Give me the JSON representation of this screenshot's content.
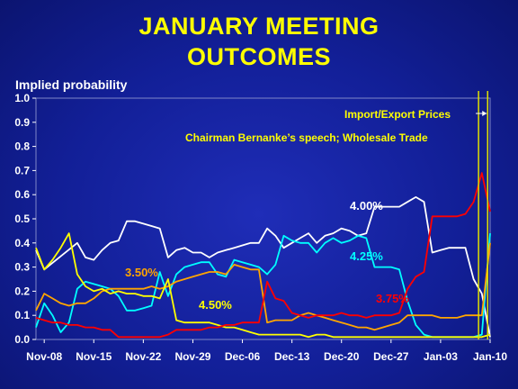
{
  "title": {
    "line1": "JANUARY MEETING",
    "line2": "OUTCOMES"
  },
  "chart_data": {
    "type": "line",
    "ylabel": "Implied probability",
    "ylim": [
      0,
      1.0
    ],
    "yticks": [
      "0.0",
      "0.1",
      "0.2",
      "0.3",
      "0.4",
      "0.5",
      "0.6",
      "0.7",
      "0.8",
      "0.9",
      "1.0"
    ],
    "xticks": [
      "Nov-08",
      "Nov-15",
      "Nov-22",
      "Nov-29",
      "Dec-06",
      "Dec-13",
      "Dec-20",
      "Dec-27",
      "Jan-03",
      "Jan-10"
    ],
    "annotations": {
      "import_export": "Import/Export Prices",
      "speech": "Chairman Bernanke’s speech; Wholesale Trade"
    },
    "series": [
      {
        "name": "4.00%",
        "color": "#ffffff",
        "points": [
          [
            0,
            0.37
          ],
          [
            1,
            0.29
          ],
          [
            5,
            0.4
          ],
          [
            6,
            0.34
          ],
          [
            7,
            0.33
          ],
          [
            8,
            0.37
          ],
          [
            9,
            0.4
          ],
          [
            10,
            0.41
          ],
          [
            11,
            0.49
          ],
          [
            12,
            0.49
          ],
          [
            13,
            0.48
          ],
          [
            14,
            0.47
          ],
          [
            15,
            0.46
          ],
          [
            16,
            0.34
          ],
          [
            17,
            0.37
          ],
          [
            18,
            0.38
          ],
          [
            19,
            0.36
          ],
          [
            20,
            0.36
          ],
          [
            21,
            0.34
          ],
          [
            22,
            0.36
          ],
          [
            23,
            0.37
          ],
          [
            24,
            0.38
          ],
          [
            25,
            0.39
          ],
          [
            26,
            0.4
          ],
          [
            27,
            0.4
          ],
          [
            28,
            0.46
          ],
          [
            29,
            0.43
          ],
          [
            30,
            0.38
          ],
          [
            31,
            0.4
          ],
          [
            32,
            0.42
          ],
          [
            33,
            0.44
          ],
          [
            34,
            0.4
          ],
          [
            35,
            0.43
          ],
          [
            36,
            0.44
          ],
          [
            37,
            0.46
          ],
          [
            38,
            0.45
          ],
          [
            39,
            0.43
          ],
          [
            40,
            0.44
          ],
          [
            41,
            0.55
          ],
          [
            42,
            0.55
          ],
          [
            43,
            0.55
          ],
          [
            44,
            0.55
          ],
          [
            45,
            0.57
          ],
          [
            46,
            0.59
          ],
          [
            47,
            0.57
          ],
          [
            48,
            0.36
          ],
          [
            49,
            0.37
          ],
          [
            50,
            0.38
          ],
          [
            51,
            0.38
          ],
          [
            52,
            0.38
          ],
          [
            53,
            0.25
          ],
          [
            54,
            0.19
          ],
          [
            55,
            0.01
          ]
        ]
      },
      {
        "name": "4.25%",
        "color": "#00ffff",
        "points": [
          [
            0,
            0.05
          ],
          [
            1,
            0.15
          ],
          [
            2,
            0.1
          ],
          [
            3,
            0.03
          ],
          [
            4,
            0.07
          ],
          [
            5,
            0.21
          ],
          [
            6,
            0.24
          ],
          [
            7,
            0.23
          ],
          [
            8,
            0.22
          ],
          [
            9,
            0.21
          ],
          [
            10,
            0.18
          ],
          [
            11,
            0.12
          ],
          [
            12,
            0.12
          ],
          [
            13,
            0.13
          ],
          [
            14,
            0.14
          ],
          [
            15,
            0.28
          ],
          [
            16,
            0.18
          ],
          [
            17,
            0.27
          ],
          [
            18,
            0.3
          ],
          [
            19,
            0.31
          ],
          [
            20,
            0.32
          ],
          [
            21,
            0.32
          ],
          [
            22,
            0.27
          ],
          [
            23,
            0.26
          ],
          [
            24,
            0.33
          ],
          [
            25,
            0.32
          ],
          [
            26,
            0.31
          ],
          [
            27,
            0.3
          ],
          [
            28,
            0.27
          ],
          [
            29,
            0.31
          ],
          [
            30,
            0.43
          ],
          [
            31,
            0.41
          ],
          [
            32,
            0.4
          ],
          [
            33,
            0.4
          ],
          [
            34,
            0.36
          ],
          [
            35,
            0.4
          ],
          [
            36,
            0.42
          ],
          [
            37,
            0.4
          ],
          [
            38,
            0.41
          ],
          [
            39,
            0.43
          ],
          [
            40,
            0.42
          ],
          [
            41,
            0.3
          ],
          [
            42,
            0.3
          ],
          [
            43,
            0.3
          ],
          [
            44,
            0.29
          ],
          [
            45,
            0.16
          ],
          [
            46,
            0.06
          ],
          [
            47,
            0.02
          ],
          [
            48,
            0.01
          ],
          [
            49,
            0.01
          ],
          [
            50,
            0.01
          ],
          [
            51,
            0.01
          ],
          [
            52,
            0.01
          ],
          [
            53,
            0.01
          ],
          [
            54,
            0.02
          ],
          [
            55,
            0.44
          ]
        ]
      },
      {
        "name": "3.50%",
        "color": "#ffa500",
        "points": [
          [
            0,
            0.12
          ],
          [
            1,
            0.19
          ],
          [
            2,
            0.17
          ],
          [
            3,
            0.15
          ],
          [
            4,
            0.14
          ],
          [
            5,
            0.15
          ],
          [
            6,
            0.15
          ],
          [
            7,
            0.17
          ],
          [
            8,
            0.2
          ],
          [
            9,
            0.21
          ],
          [
            10,
            0.21
          ],
          [
            11,
            0.21
          ],
          [
            12,
            0.21
          ],
          [
            13,
            0.21
          ],
          [
            14,
            0.22
          ],
          [
            15,
            0.21
          ],
          [
            16,
            0.22
          ],
          [
            17,
            0.24
          ],
          [
            18,
            0.25
          ],
          [
            19,
            0.26
          ],
          [
            20,
            0.27
          ],
          [
            21,
            0.28
          ],
          [
            22,
            0.28
          ],
          [
            23,
            0.27
          ],
          [
            24,
            0.31
          ],
          [
            25,
            0.3
          ],
          [
            26,
            0.29
          ],
          [
            27,
            0.29
          ],
          [
            28,
            0.07
          ],
          [
            29,
            0.08
          ],
          [
            30,
            0.08
          ],
          [
            31,
            0.08
          ],
          [
            32,
            0.1
          ],
          [
            33,
            0.11
          ],
          [
            34,
            0.1
          ],
          [
            35,
            0.09
          ],
          [
            36,
            0.08
          ],
          [
            37,
            0.07
          ],
          [
            38,
            0.06
          ],
          [
            39,
            0.05
          ],
          [
            40,
            0.05
          ],
          [
            41,
            0.04
          ],
          [
            42,
            0.05
          ],
          [
            43,
            0.06
          ],
          [
            44,
            0.07
          ],
          [
            45,
            0.1
          ],
          [
            46,
            0.1
          ],
          [
            47,
            0.1
          ],
          [
            48,
            0.1
          ],
          [
            49,
            0.09
          ],
          [
            50,
            0.09
          ],
          [
            51,
            0.09
          ],
          [
            52,
            0.1
          ],
          [
            53,
            0.1
          ],
          [
            54,
            0.1
          ],
          [
            55,
            0.4
          ]
        ]
      },
      {
        "name": "4.50%",
        "color": "#ffff00",
        "points": [
          [
            0,
            0.38
          ],
          [
            1,
            0.29
          ],
          [
            2,
            0.33
          ],
          [
            3,
            0.38
          ],
          [
            4,
            0.44
          ],
          [
            5,
            0.27
          ],
          [
            6,
            0.22
          ],
          [
            7,
            0.2
          ],
          [
            8,
            0.21
          ],
          [
            9,
            0.19
          ],
          [
            10,
            0.2
          ],
          [
            11,
            0.19
          ],
          [
            12,
            0.19
          ],
          [
            13,
            0.18
          ],
          [
            14,
            0.18
          ],
          [
            15,
            0.17
          ],
          [
            16,
            0.25
          ],
          [
            17,
            0.08
          ],
          [
            18,
            0.07
          ],
          [
            19,
            0.07
          ],
          [
            20,
            0.07
          ],
          [
            21,
            0.07
          ],
          [
            22,
            0.06
          ],
          [
            23,
            0.05
          ],
          [
            24,
            0.05
          ],
          [
            25,
            0.04
          ],
          [
            26,
            0.03
          ],
          [
            27,
            0.02
          ],
          [
            28,
            0.02
          ],
          [
            29,
            0.02
          ],
          [
            30,
            0.02
          ],
          [
            31,
            0.02
          ],
          [
            32,
            0.02
          ],
          [
            33,
            0.01
          ],
          [
            34,
            0.02
          ],
          [
            35,
            0.02
          ],
          [
            36,
            0.01
          ],
          [
            37,
            0.01
          ],
          [
            38,
            0.01
          ],
          [
            39,
            0.01
          ],
          [
            40,
            0.01
          ],
          [
            41,
            0.01
          ],
          [
            42,
            0.01
          ],
          [
            43,
            0.01
          ],
          [
            44,
            0.01
          ],
          [
            45,
            0.01
          ],
          [
            46,
            0.01
          ],
          [
            47,
            0.01
          ],
          [
            48,
            0.01
          ],
          [
            49,
            0.01
          ],
          [
            50,
            0.01
          ],
          [
            51,
            0.01
          ],
          [
            52,
            0.01
          ],
          [
            53,
            0.01
          ],
          [
            54,
            0.01
          ],
          [
            55,
            0.02
          ]
        ]
      },
      {
        "name": "3.75%",
        "color": "#ff0000",
        "points": [
          [
            0,
            0.09
          ],
          [
            1,
            0.08
          ],
          [
            2,
            0.07
          ],
          [
            3,
            0.07
          ],
          [
            4,
            0.06
          ],
          [
            5,
            0.06
          ],
          [
            6,
            0.05
          ],
          [
            7,
            0.05
          ],
          [
            8,
            0.04
          ],
          [
            9,
            0.04
          ],
          [
            10,
            0.01
          ],
          [
            11,
            0.01
          ],
          [
            12,
            0.01
          ],
          [
            13,
            0.01
          ],
          [
            14,
            0.01
          ],
          [
            15,
            0.01
          ],
          [
            16,
            0.02
          ],
          [
            17,
            0.04
          ],
          [
            18,
            0.04
          ],
          [
            19,
            0.04
          ],
          [
            20,
            0.04
          ],
          [
            21,
            0.05
          ],
          [
            22,
            0.05
          ],
          [
            23,
            0.06
          ],
          [
            24,
            0.06
          ],
          [
            25,
            0.07
          ],
          [
            26,
            0.07
          ],
          [
            27,
            0.07
          ],
          [
            28,
            0.24
          ],
          [
            29,
            0.17
          ],
          [
            30,
            0.16
          ],
          [
            31,
            0.11
          ],
          [
            32,
            0.1
          ],
          [
            33,
            0.09
          ],
          [
            34,
            0.1
          ],
          [
            35,
            0.1
          ],
          [
            36,
            0.1
          ],
          [
            37,
            0.11
          ],
          [
            38,
            0.1
          ],
          [
            39,
            0.1
          ],
          [
            40,
            0.09
          ],
          [
            41,
            0.1
          ],
          [
            42,
            0.1
          ],
          [
            43,
            0.1
          ],
          [
            44,
            0.11
          ],
          [
            45,
            0.21
          ],
          [
            46,
            0.26
          ],
          [
            47,
            0.28
          ],
          [
            48,
            0.51
          ],
          [
            49,
            0.51
          ],
          [
            50,
            0.51
          ],
          [
            51,
            0.51
          ],
          [
            52,
            0.52
          ],
          [
            53,
            0.57
          ],
          [
            54,
            0.69
          ],
          [
            55,
            0.53
          ]
        ]
      }
    ]
  }
}
